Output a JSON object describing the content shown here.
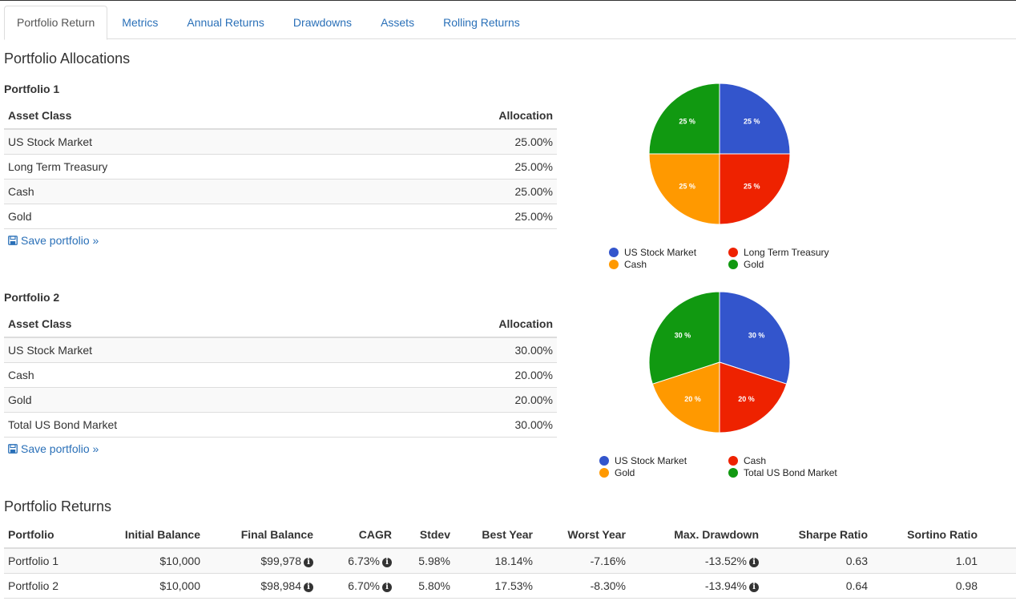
{
  "tabs": [
    {
      "label": "Portfolio Return",
      "active": true
    },
    {
      "label": "Metrics"
    },
    {
      "label": "Annual Returns"
    },
    {
      "label": "Drawdowns"
    },
    {
      "label": "Assets"
    },
    {
      "label": "Rolling Returns"
    }
  ],
  "allocations": {
    "title": "Portfolio Allocations",
    "col_asset": "Asset Class",
    "col_allocation": "Allocation",
    "save_label": "Save portfolio »",
    "portfolios": [
      {
        "name": "Portfolio 1",
        "rows": [
          {
            "asset": "US Stock Market",
            "allocation": "25.00%"
          },
          {
            "asset": "Long Term Treasury",
            "allocation": "25.00%"
          },
          {
            "asset": "Cash",
            "allocation": "25.00%"
          },
          {
            "asset": "Gold",
            "allocation": "25.00%"
          }
        ]
      },
      {
        "name": "Portfolio 2",
        "rows": [
          {
            "asset": "US Stock Market",
            "allocation": "30.00%"
          },
          {
            "asset": "Cash",
            "allocation": "20.00%"
          },
          {
            "asset": "Gold",
            "allocation": "20.00%"
          },
          {
            "asset": "Total US Bond Market",
            "allocation": "30.00%"
          }
        ]
      }
    ]
  },
  "chart_data": [
    {
      "type": "pie",
      "legend": "bottom",
      "slices": [
        {
          "label": "US Stock Market",
          "value": 25,
          "text": "25 %",
          "color": "#3355cc"
        },
        {
          "label": "Long Term Treasury",
          "value": 25,
          "text": "25 %",
          "color": "#ee2200"
        },
        {
          "label": "Cash",
          "value": 25,
          "text": "25 %",
          "color": "#ff9900"
        },
        {
          "label": "Gold",
          "value": 25,
          "text": "25 %",
          "color": "#119911"
        }
      ]
    },
    {
      "type": "pie",
      "legend": "bottom",
      "slices": [
        {
          "label": "US Stock Market",
          "value": 30,
          "text": "30 %",
          "color": "#3355cc"
        },
        {
          "label": "Cash",
          "value": 20,
          "text": "20 %",
          "color": "#ee2200"
        },
        {
          "label": "Gold",
          "value": 20,
          "text": "20 %",
          "color": "#ff9900"
        },
        {
          "label": "Total US Bond Market",
          "value": 30,
          "text": "30 %",
          "color": "#119911"
        }
      ]
    }
  ],
  "returns": {
    "title": "Portfolio Returns",
    "columns": [
      "Portfolio",
      "Initial Balance",
      "Final Balance",
      "CAGR",
      "Stdev",
      "Best Year",
      "Worst Year",
      "Max. Drawdown",
      "Sharpe Ratio",
      "Sortino Ratio"
    ],
    "rows": [
      {
        "portfolio": "Portfolio 1",
        "initial": "$10,000",
        "final": "$99,978",
        "cagr": "6.73%",
        "stdev": "5.98%",
        "best": "18.14%",
        "worst": "-7.16%",
        "maxdd": "-13.52%",
        "sharpe": "0.63",
        "sortino": "1.01"
      },
      {
        "portfolio": "Portfolio 2",
        "initial": "$10,000",
        "final": "$98,984",
        "cagr": "6.70%",
        "stdev": "5.80%",
        "best": "17.53%",
        "worst": "-8.30%",
        "maxdd": "-13.94%",
        "sharpe": "0.64",
        "sortino": "0.98"
      }
    ]
  }
}
